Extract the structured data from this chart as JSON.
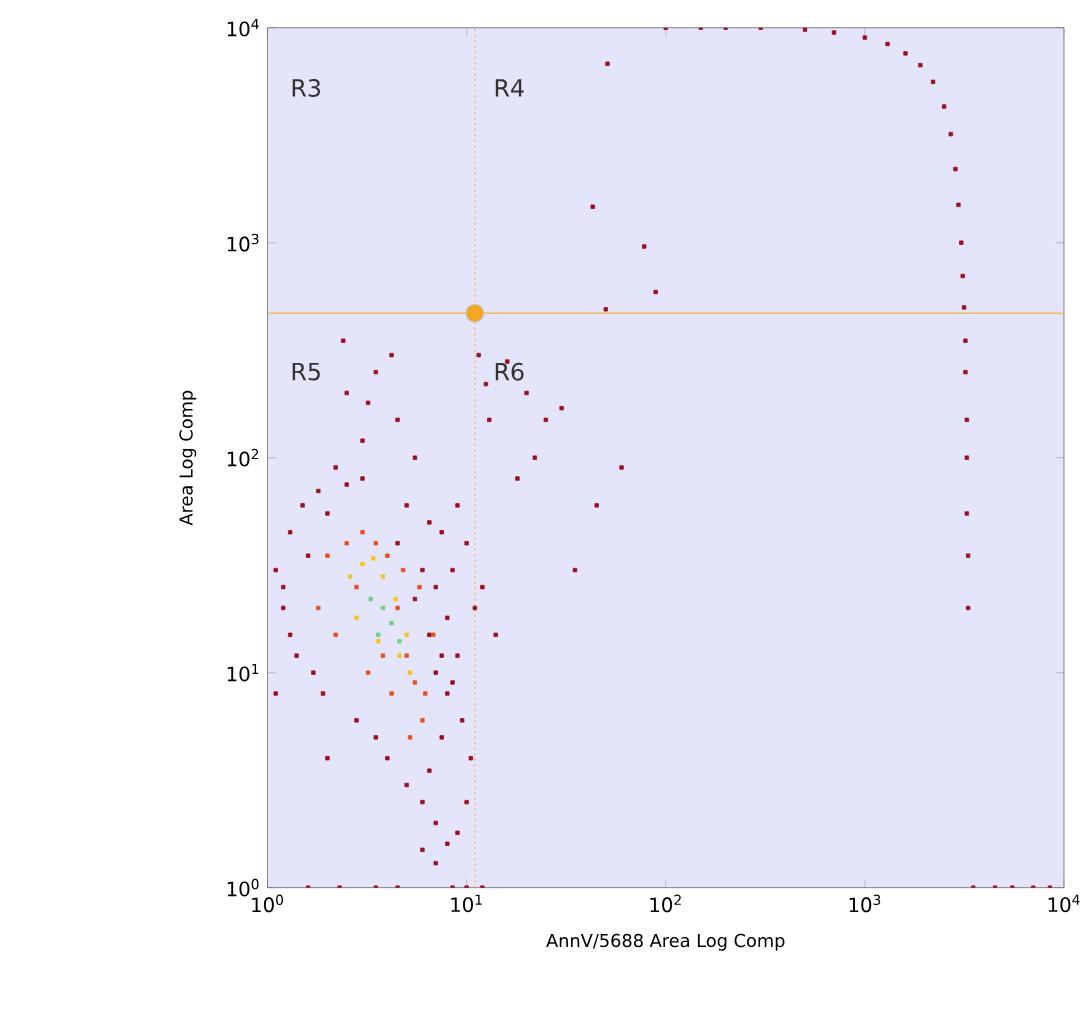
{
  "chart_data": {
    "type": "scatter",
    "xlabel": "AnnV/5688 Area Log Comp",
    "ylabel": "Area Log Comp",
    "log": "xy",
    "grid": false,
    "marker": "square",
    "xlim": [
      1,
      10000
    ],
    "ylim": [
      1,
      10000
    ],
    "xticks": [
      {
        "value": 1,
        "label": "10$^{0}$"
      },
      {
        "value": 10,
        "label": "10$^{1}$"
      },
      {
        "value": 100,
        "label": "10$^{2}$"
      },
      {
        "value": 1000,
        "label": "10$^{3}$"
      },
      {
        "value": 10000,
        "label": "10$^{4}$"
      }
    ],
    "yticks": [
      {
        "value": 1,
        "label": "10$^{0}$"
      },
      {
        "value": 10,
        "label": "10$^{1}$"
      },
      {
        "value": 100,
        "label": "10$^{2}$"
      },
      {
        "value": 1000,
        "label": "10$^{3}$"
      },
      {
        "value": 10000,
        "label": "10$^{4}$"
      }
    ],
    "series": [
      {
        "color": "#9b0f1e",
        "x": [
          1.1,
          1.3,
          1.2,
          1.5,
          1.8,
          1.4,
          1.1,
          1.6,
          2.0,
          2.5,
          3.0,
          2.2,
          1.9,
          2.8,
          3.5,
          4.0,
          5.0,
          6.0,
          7.0,
          8.0,
          9.0,
          10.0,
          10.5,
          9.5,
          8.5,
          7.5,
          6.5,
          5.5,
          4.5,
          6.0,
          7.0,
          8.0,
          9.0,
          5.0,
          6.5,
          7.5,
          8.5,
          6.0,
          7.0,
          6.5,
          7.5,
          8.0,
          7.0,
          3.0,
          2.5,
          3.5,
          4.5,
          5.5,
          9.0,
          10.0,
          11.0,
          12.0,
          14.0,
          2.0,
          1.3,
          1.7,
          1.2,
          2.4,
          3.2,
          4.2,
          11.5,
          12.5,
          13.0,
          16.0,
          20.0,
          25.0,
          30.0,
          18.0,
          22.0,
          35.0,
          45.0,
          60.0,
          50.0,
          43.0,
          78.0,
          89.0,
          51.0,
          100.0,
          150.0,
          200.0,
          300.0,
          500.0,
          700.0,
          1000.0,
          1300.0,
          1600.0,
          1900.0,
          2200.0,
          2500.0,
          2700.0,
          2850.0,
          2950.0,
          3050.0,
          3100.0,
          3150.0,
          3200.0,
          3200.0,
          3250.0,
          3250.0,
          3250.0,
          3300.0,
          3300.0,
          3500.0,
          4500.0,
          5500.0,
          7000.0,
          8500.0,
          3.5,
          4.5,
          8.5,
          10.0,
          12.0,
          2.3,
          1.6
        ],
        "values": [
          30.0,
          45.0,
          20.0,
          60.0,
          70.0,
          12.0,
          8.0,
          35.0,
          55.0,
          75.0,
          80.0,
          90.0,
          8.0,
          6.0,
          5.0,
          4.0,
          3.0,
          2.5,
          2.0,
          1.6,
          1.8,
          2.5,
          4.0,
          6.0,
          9.0,
          12.0,
          15.0,
          22.0,
          40.0,
          30.0,
          25.0,
          18.0,
          12.0,
          60.0,
          50.0,
          45.0,
          30.0,
          1.5,
          1.3,
          3.5,
          5.0,
          8.0,
          10.0,
          120.0,
          200.0,
          250.0,
          150.0,
          100.0,
          60.0,
          40.0,
          20.0,
          25.0,
          15.0,
          4.0,
          15.0,
          10.0,
          25.0,
          350.0,
          180.0,
          300.0,
          300.0,
          220.0,
          150.0,
          280.0,
          200.0,
          150.0,
          170.0,
          80.0,
          100.0,
          30.0,
          60.0,
          90.0,
          490.0,
          1470.0,
          960.0,
          590.0,
          6800.0,
          10000.0,
          10000.0,
          10000.0,
          10000.0,
          9800.0,
          9500.0,
          9000.0,
          8400.0,
          7600.0,
          6700.0,
          5600.0,
          4300.0,
          3200.0,
          2200.0,
          1500.0,
          1000.0,
          700.0,
          500.0,
          350.0,
          250.0,
          150.0,
          100.0,
          55.0,
          35.0,
          20.0,
          1.0,
          1.0,
          1.0,
          1.0,
          1.0,
          1.0,
          1.0,
          1.0,
          1.0,
          1.0,
          1.0,
          1.0
        ]
      },
      {
        "color": "#e8501e",
        "x": [
          2.0,
          2.5,
          3.0,
          3.5,
          4.0,
          4.5,
          5.0,
          5.5,
          6.0,
          1.8,
          2.2,
          3.2,
          4.2,
          5.2,
          6.2,
          6.8,
          5.8,
          4.8,
          3.8,
          2.8
        ],
        "values": [
          35.0,
          40.0,
          45.0,
          40.0,
          35.0,
          20.0,
          12.0,
          9.0,
          6.0,
          20.0,
          15.0,
          10.0,
          8.0,
          5.0,
          8.0,
          15.0,
          25.0,
          30.0,
          12.0,
          25.0
        ]
      },
      {
        "color": "#f5c51e",
        "x": [
          2.6,
          3.0,
          3.4,
          3.8,
          4.4,
          5.0,
          5.2,
          4.6,
          2.8,
          3.6
        ],
        "values": [
          28.0,
          32.0,
          34.0,
          28.0,
          22.0,
          15.0,
          10.0,
          12.0,
          18.0,
          14.0
        ]
      },
      {
        "color": "#6ed08a",
        "x": [
          3.3,
          3.8,
          4.2,
          3.6,
          4.6
        ],
        "values": [
          22.0,
          20.0,
          17.0,
          15.0,
          14.0
        ]
      },
      {
        "color": "#f5a623",
        "marker": "circle",
        "x": [
          11
        ],
        "values": [
          470
        ]
      }
    ],
    "ref_lines": [
      {
        "axis": "x",
        "value": 11,
        "color": "#f5b860",
        "line_style": "dotted"
      },
      {
        "axis": "y",
        "value": 470,
        "color": "#f5b860",
        "line_style": "solid"
      }
    ],
    "annotations": [
      "R3",
      "R4",
      "R5",
      "R6"
    ]
  }
}
